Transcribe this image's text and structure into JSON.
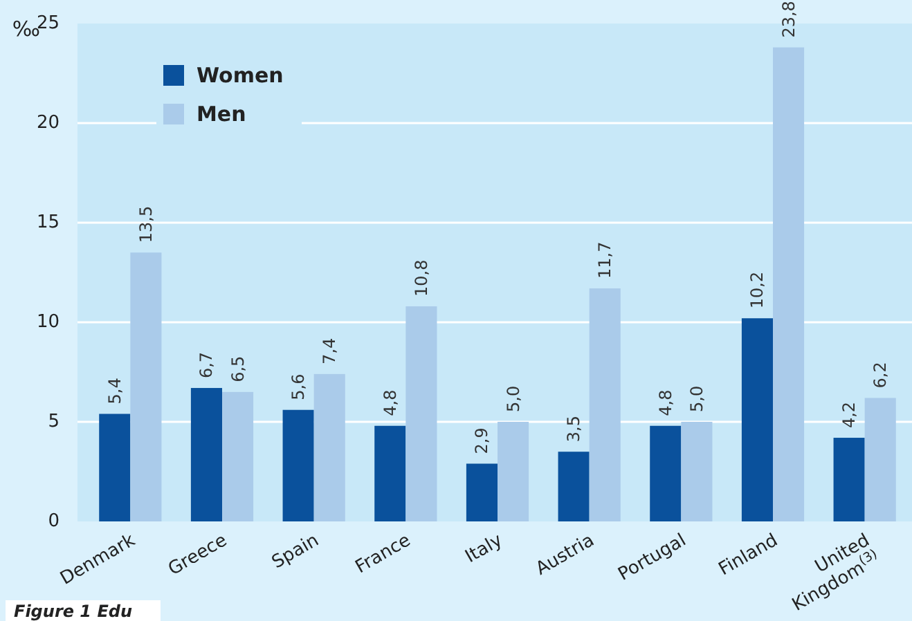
{
  "chart_data": {
    "type": "bar",
    "ylabel": "‰",
    "categories": [
      "Denmark",
      "Greece",
      "Spain",
      "France",
      "Italy",
      "Austria",
      "Portugal",
      "Finland",
      "United Kingdom$^{(3)}$"
    ],
    "series": [
      {
        "name": "Women",
        "color": "#0a519c",
        "values": [
          5.4,
          6.7,
          5.6,
          4.8,
          2.9,
          3.5,
          4.8,
          10.2,
          4.2
        ],
        "value_labels": [
          "5,4",
          "6,7",
          "5,6",
          "4,8",
          "2,9",
          "3,5",
          "4,8",
          "10,2",
          "4,2"
        ]
      },
      {
        "name": "Men",
        "color": "#aacbea",
        "values": [
          13.5,
          6.5,
          7.4,
          10.8,
          5.0,
          11.7,
          5.0,
          23.8,
          6.2
        ],
        "value_labels": [
          "13,5",
          "6,5",
          "7,4",
          "10,8",
          "5,0",
          "11,7",
          "5,0",
          "23,8",
          "6,2"
        ]
      }
    ],
    "ylim": [
      0,
      25
    ],
    "yticks": [
      0,
      5,
      10,
      15,
      20,
      25
    ],
    "grid": "y",
    "legend": "top left",
    "annotations": [
      "Figure 1 Edu"
    ]
  }
}
